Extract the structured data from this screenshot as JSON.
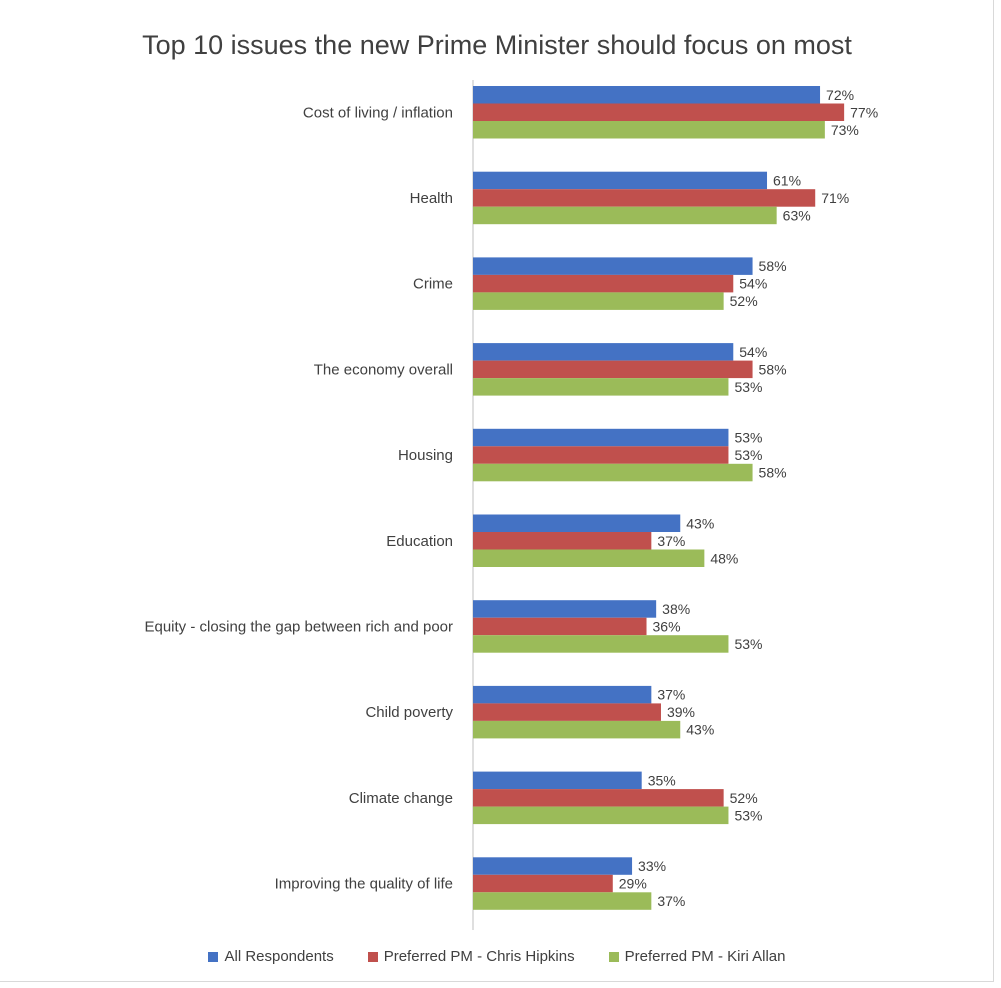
{
  "chart_data": {
    "type": "bar",
    "orientation": "horizontal",
    "title": "Top 10 issues the new Prime Minister should focus on most",
    "categories": [
      "Cost of living / inflation",
      "Health",
      "Crime",
      "The economy overall",
      "Housing",
      "Education",
      "Equity - closing the gap between rich and poor",
      "Child poverty",
      "Climate change",
      "Improving the quality of life"
    ],
    "series": [
      {
        "name": "All Respondents",
        "color": "#4472c4",
        "values": [
          72,
          61,
          58,
          54,
          53,
          43,
          38,
          37,
          35,
          33
        ]
      },
      {
        "name": "Preferred PM - Chris Hipkins",
        "color": "#c0504d",
        "values": [
          77,
          71,
          54,
          58,
          53,
          37,
          36,
          39,
          52,
          29
        ]
      },
      {
        "name": "Preferred PM - Kiri Allan",
        "color": "#9bbb59",
        "values": [
          73,
          63,
          52,
          53,
          58,
          48,
          53,
          43,
          53,
          37
        ]
      }
    ],
    "value_suffix": "%",
    "xlim": [
      0,
      100
    ],
    "grid": false,
    "legend_position": "bottom"
  }
}
